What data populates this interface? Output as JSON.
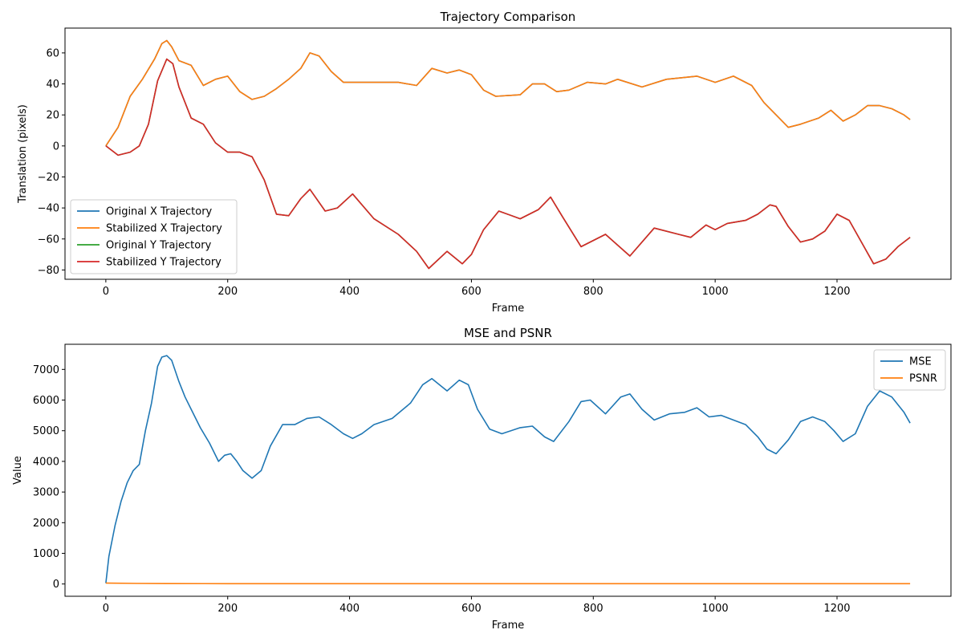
{
  "chart_data": [
    {
      "type": "line",
      "title": "Trajectory Comparison",
      "xlabel": "Frame",
      "ylabel": "Translation (pixels)",
      "xlim": [
        -67,
        1387
      ],
      "ylim": [
        -86,
        76
      ],
      "xticks": [
        0,
        200,
        400,
        600,
        800,
        1000,
        1200
      ],
      "yticks": [
        -80,
        -60,
        -40,
        -20,
        0,
        20,
        40,
        60
      ],
      "grid": false,
      "legend_position": "lower left",
      "series": [
        {
          "name": "Original X Trajectory",
          "color": "#1f77b4",
          "x": [
            0,
            20,
            40,
            60,
            80,
            92,
            100,
            108,
            120,
            140,
            160,
            180,
            200,
            220,
            240,
            260,
            280,
            300,
            320,
            335,
            350,
            370,
            390,
            400,
            440,
            480,
            510,
            535,
            560,
            580,
            600,
            620,
            640,
            680,
            700,
            720,
            740,
            760,
            790,
            820,
            840,
            880,
            920,
            970,
            1000,
            1030,
            1060,
            1080,
            1100,
            1120,
            1140,
            1170,
            1190,
            1210,
            1230,
            1250,
            1270,
            1290,
            1310,
            1320
          ],
          "y": [
            0,
            12,
            32,
            43,
            56,
            66,
            68,
            64,
            55,
            52,
            39,
            43,
            45,
            35,
            30,
            32,
            37,
            43,
            50,
            60,
            58,
            48,
            41,
            41,
            41,
            41,
            39,
            50,
            47,
            49,
            46,
            36,
            32,
            33,
            40,
            40,
            35,
            36,
            41,
            40,
            43,
            38,
            43,
            45,
            41,
            45,
            39,
            28,
            20,
            12,
            14,
            18,
            23,
            16,
            20,
            26,
            26,
            24,
            20,
            17
          ]
        },
        {
          "name": "Stabilized X Trajectory",
          "color": "#ff7f0e",
          "x": [
            0,
            20,
            40,
            60,
            80,
            92,
            100,
            108,
            120,
            140,
            160,
            180,
            200,
            220,
            240,
            260,
            280,
            300,
            320,
            335,
            350,
            370,
            390,
            400,
            440,
            480,
            510,
            535,
            560,
            580,
            600,
            620,
            640,
            680,
            700,
            720,
            740,
            760,
            790,
            820,
            840,
            880,
            920,
            970,
            1000,
            1030,
            1060,
            1080,
            1100,
            1120,
            1140,
            1170,
            1190,
            1210,
            1230,
            1250,
            1270,
            1290,
            1310,
            1320
          ],
          "y": [
            0,
            12,
            32,
            43,
            56,
            66,
            68,
            64,
            55,
            52,
            39,
            43,
            45,
            35,
            30,
            32,
            37,
            43,
            50,
            60,
            58,
            48,
            41,
            41,
            41,
            41,
            39,
            50,
            47,
            49,
            46,
            36,
            32,
            33,
            40,
            40,
            35,
            36,
            41,
            40,
            43,
            38,
            43,
            45,
            41,
            45,
            39,
            28,
            20,
            12,
            14,
            18,
            23,
            16,
            20,
            26,
            26,
            24,
            20,
            17
          ]
        },
        {
          "name": "Original Y Trajectory",
          "color": "#2ca02c",
          "x": [
            0,
            20,
            40,
            55,
            70,
            85,
            100,
            110,
            120,
            140,
            160,
            180,
            200,
            220,
            240,
            260,
            280,
            300,
            320,
            335,
            360,
            380,
            405,
            440,
            480,
            510,
            530,
            560,
            585,
            600,
            620,
            645,
            680,
            710,
            730,
            750,
            780,
            820,
            860,
            900,
            940,
            960,
            985,
            1000,
            1020,
            1050,
            1070,
            1090,
            1100,
            1120,
            1140,
            1160,
            1180,
            1200,
            1220,
            1240,
            1260,
            1280,
            1300,
            1320
          ],
          "y": [
            0,
            -6,
            -4,
            0,
            14,
            42,
            56,
            53,
            38,
            18,
            14,
            2,
            -4,
            -4,
            -7,
            -22,
            -44,
            -45,
            -34,
            -28,
            -42,
            -40,
            -31,
            -47,
            -57,
            -68,
            -79,
            -68,
            -76,
            -70,
            -54,
            -42,
            -47,
            -41,
            -33,
            -46,
            -65,
            -57,
            -71,
            -53,
            -57,
            -59,
            -51,
            -54,
            -50,
            -48,
            -44,
            -38,
            -39,
            -52,
            -62,
            -60,
            -55,
            -44,
            -48,
            -62,
            -76,
            -73,
            -65,
            -59
          ]
        },
        {
          "name": "Stabilized Y Trajectory",
          "color": "#d62728",
          "x": [
            0,
            20,
            40,
            55,
            70,
            85,
            100,
            110,
            120,
            140,
            160,
            180,
            200,
            220,
            240,
            260,
            280,
            300,
            320,
            335,
            360,
            380,
            405,
            440,
            480,
            510,
            530,
            560,
            585,
            600,
            620,
            645,
            680,
            710,
            730,
            750,
            780,
            820,
            860,
            900,
            940,
            960,
            985,
            1000,
            1020,
            1050,
            1070,
            1090,
            1100,
            1120,
            1140,
            1160,
            1180,
            1200,
            1220,
            1240,
            1260,
            1280,
            1300,
            1320
          ],
          "y": [
            0,
            -6,
            -4,
            0,
            14,
            42,
            56,
            53,
            38,
            18,
            14,
            2,
            -4,
            -4,
            -7,
            -22,
            -44,
            -45,
            -34,
            -28,
            -42,
            -40,
            -31,
            -47,
            -57,
            -68,
            -79,
            -68,
            -76,
            -70,
            -54,
            -42,
            -47,
            -41,
            -33,
            -46,
            -65,
            -57,
            -71,
            -53,
            -57,
            -59,
            -51,
            -54,
            -50,
            -48,
            -44,
            -38,
            -39,
            -52,
            -62,
            -60,
            -55,
            -44,
            -48,
            -62,
            -76,
            -73,
            -65,
            -59
          ]
        }
      ]
    },
    {
      "type": "line",
      "title": "MSE and PSNR",
      "xlabel": "Frame",
      "ylabel": "Value",
      "xlim": [
        -67,
        1387
      ],
      "ylim": [
        -400,
        7820
      ],
      "xticks": [
        0,
        200,
        400,
        600,
        800,
        1000,
        1200
      ],
      "yticks": [
        0,
        1000,
        2000,
        3000,
        4000,
        5000,
        6000,
        7000
      ],
      "grid": false,
      "legend_position": "upper right",
      "series": [
        {
          "name": "MSE",
          "color": "#1f77b4",
          "x": [
            0,
            5,
            15,
            25,
            35,
            45,
            55,
            65,
            75,
            85,
            92,
            100,
            108,
            120,
            130,
            140,
            155,
            170,
            185,
            195,
            205,
            215,
            225,
            240,
            255,
            270,
            290,
            310,
            330,
            350,
            370,
            390,
            405,
            420,
            440,
            470,
            500,
            520,
            535,
            560,
            580,
            595,
            610,
            630,
            650,
            680,
            700,
            720,
            735,
            760,
            780,
            795,
            820,
            845,
            860,
            880,
            900,
            925,
            950,
            970,
            990,
            1010,
            1030,
            1050,
            1070,
            1085,
            1100,
            1120,
            1140,
            1160,
            1180,
            1195,
            1210,
            1230,
            1250,
            1270,
            1290,
            1310,
            1320
          ],
          "y": [
            30,
            900,
            1900,
            2700,
            3300,
            3700,
            3900,
            5000,
            5900,
            7100,
            7400,
            7450,
            7300,
            6600,
            6100,
            5700,
            5100,
            4600,
            4000,
            4200,
            4250,
            4000,
            3700,
            3450,
            3700,
            4500,
            5200,
            5200,
            5400,
            5450,
            5200,
            4900,
            4750,
            4900,
            5200,
            5400,
            5900,
            6500,
            6700,
            6300,
            6650,
            6500,
            5700,
            5050,
            4900,
            5100,
            5150,
            4800,
            4650,
            5300,
            5950,
            6000,
            5550,
            6100,
            6200,
            5700,
            5350,
            5550,
            5600,
            5750,
            5450,
            5500,
            5350,
            5200,
            4800,
            4400,
            4250,
            4700,
            5300,
            5450,
            5300,
            5000,
            4650,
            4900,
            5800,
            6300,
            6100,
            5600,
            5250
          ]
        },
        {
          "name": "PSNR",
          "color": "#ff7f0e",
          "x": [
            0,
            50,
            100,
            200,
            400,
            600,
            800,
            1000,
            1200,
            1320
          ],
          "y": [
            30,
            20,
            14,
            12,
            11,
            10,
            11,
            11,
            11,
            11
          ]
        }
      ]
    }
  ]
}
